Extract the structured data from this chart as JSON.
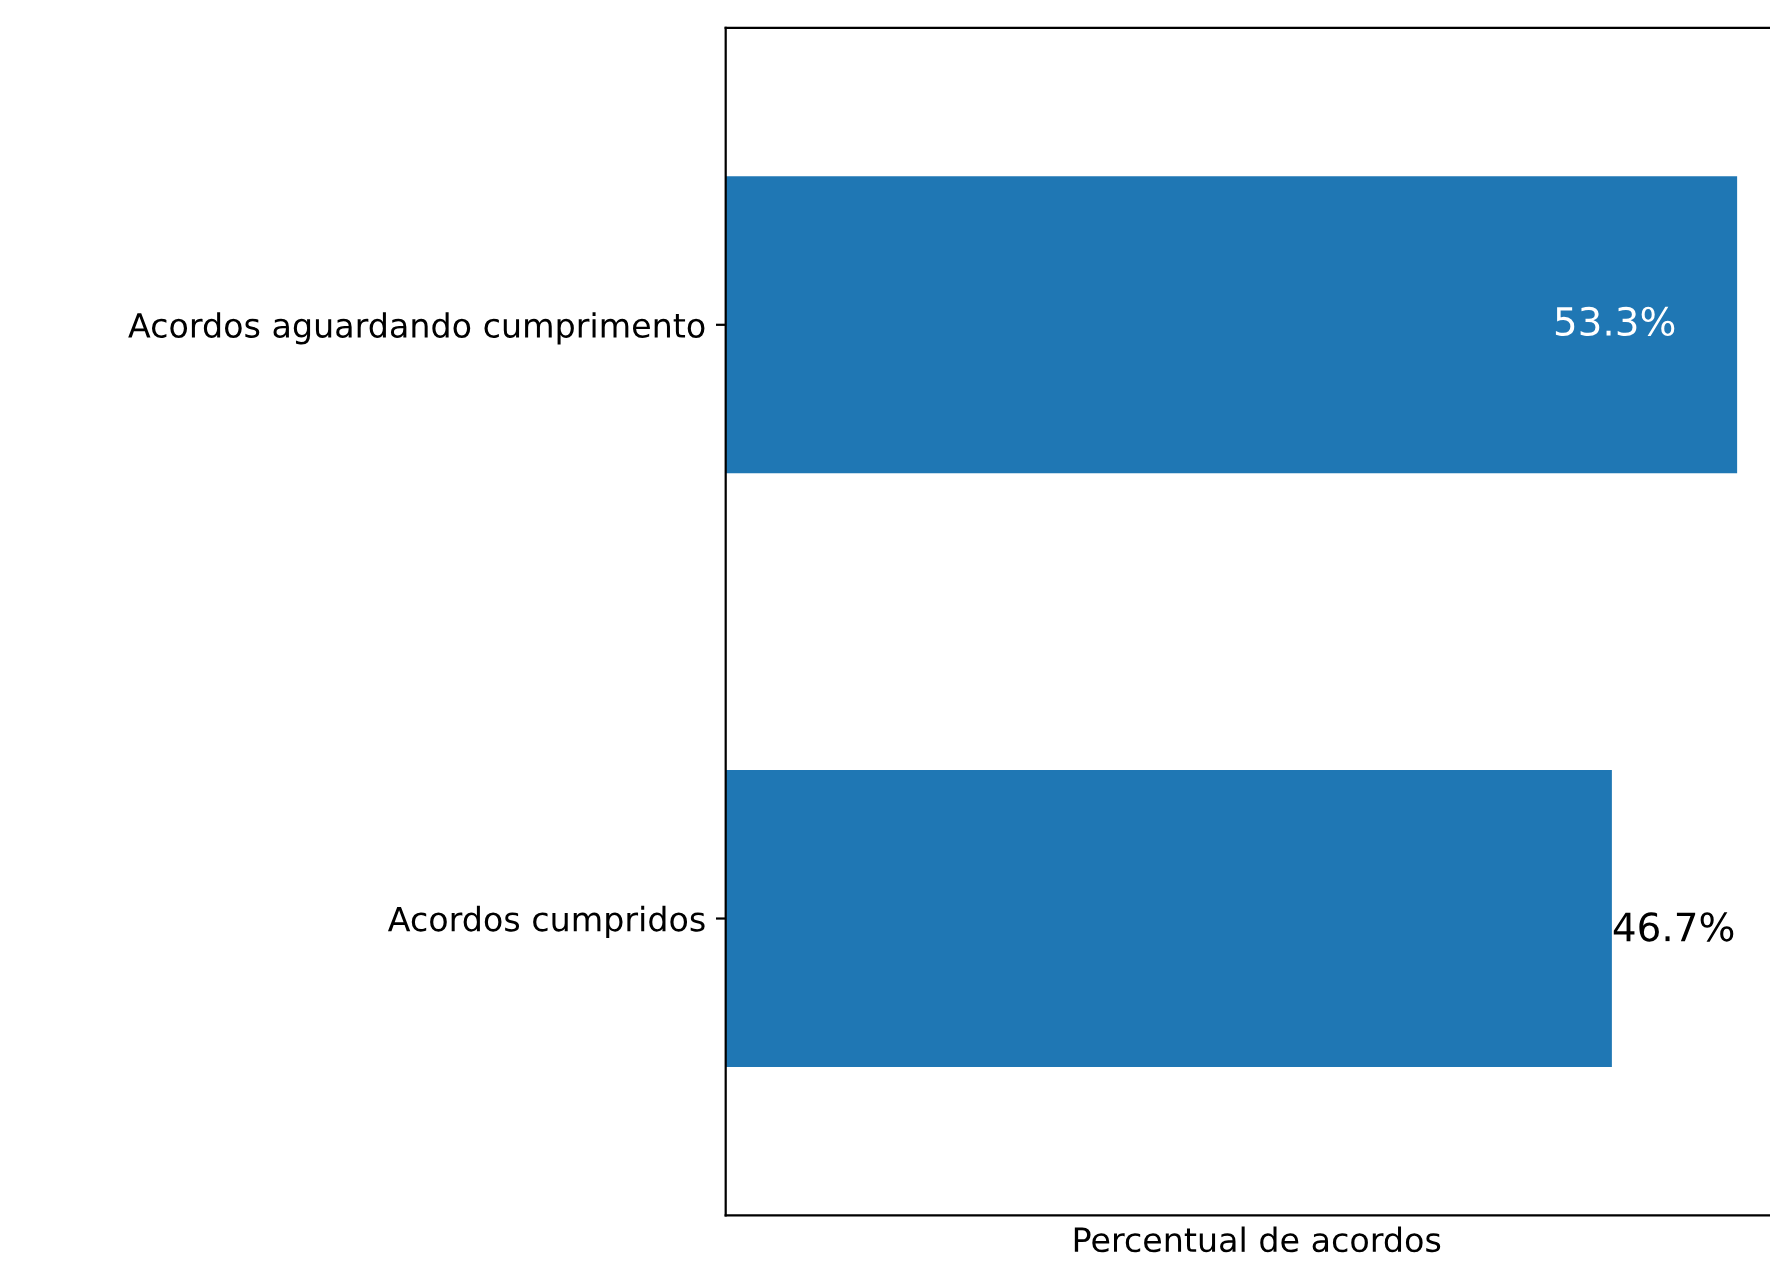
{
  "chart_data": {
    "type": "bar",
    "orientation": "horizontal",
    "xlabel": "Percentual de acordos",
    "categories": [
      "Acordos aguardando cumprimento",
      "Acordos cumpridos"
    ],
    "values": [
      53.3,
      46.7
    ],
    "color": "#1f77b4",
    "value_labels": [
      "53.3%",
      "46.7%"
    ],
    "tick_labels": "y",
    "grid": false,
    "legend": false
  }
}
